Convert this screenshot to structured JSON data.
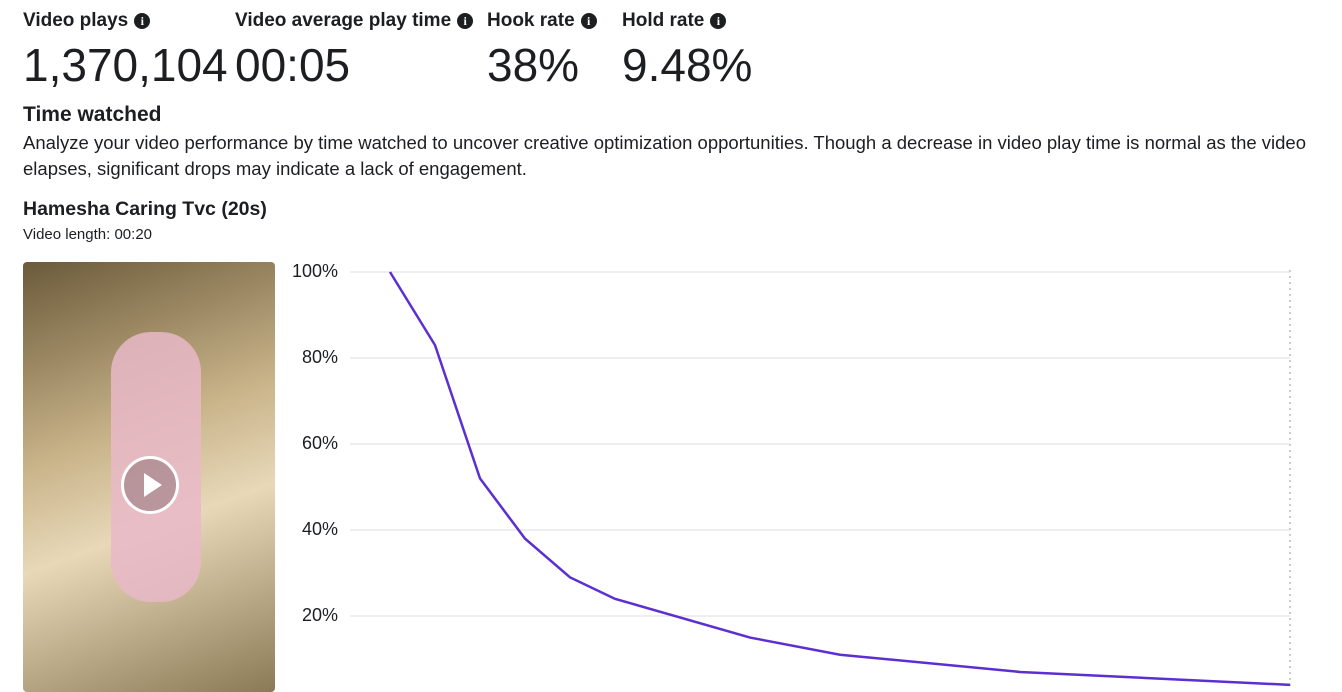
{
  "metrics": [
    {
      "label": "Video plays",
      "value": "1,370,104"
    },
    {
      "label": "Video average play time",
      "value": "00:05"
    },
    {
      "label": "Hook rate",
      "value": "38%"
    },
    {
      "label": "Hold rate",
      "value": "9.48%"
    }
  ],
  "section": {
    "title": "Time watched",
    "description": "Analyze your video performance by time watched to uncover creative optimization opportunities. Though a decrease in video play time is normal as the video elapses, significant drops may indicate a lack of engagement."
  },
  "video": {
    "title": "Hamesha Caring Tvc (20s)",
    "length": "Video length: 00:20"
  },
  "chart_data": {
    "type": "line",
    "x": [
      0,
      1,
      2,
      3,
      4,
      5,
      8,
      10,
      14,
      20
    ],
    "series": [
      {
        "name": "Hamesha Caring Tvc (20s)",
        "color": "#5b2fd1",
        "values": [
          100,
          83,
          52,
          38,
          29,
          24,
          15,
          11,
          7,
          4
        ]
      }
    ],
    "xlim": [
      0,
      20
    ],
    "ylim": [
      3.5,
      100
    ],
    "yticks": [
      {
        "value": 20,
        "label": "20%"
      },
      {
        "value": 40,
        "label": "40%"
      },
      {
        "value": 60,
        "label": "60%"
      },
      {
        "value": 80,
        "label": "80%"
      },
      {
        "value": 100,
        "label": "100%"
      }
    ],
    "grid": true
  }
}
